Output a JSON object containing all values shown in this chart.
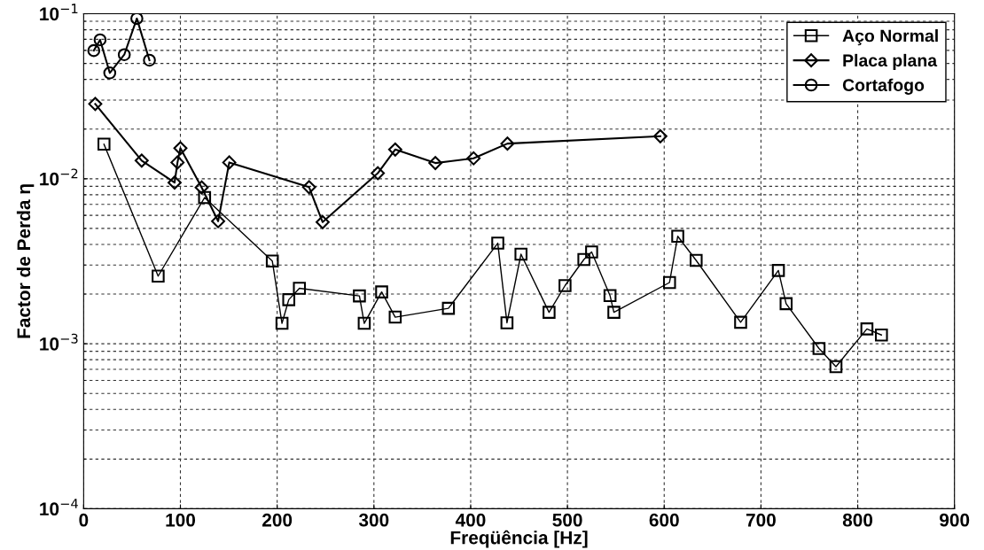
{
  "chart_data": {
    "type": "line",
    "xlabel": "Freqüência [Hz]",
    "ylabel": "Factor de Perda η",
    "log": "y",
    "grid": true,
    "legend": "top right",
    "line_style": "solid",
    "xlim": [
      0,
      900
    ],
    "xticks": [
      0,
      100,
      200,
      300,
      400,
      500,
      600,
      700,
      800,
      900
    ],
    "ylim": [
      0.0001,
      0.1
    ],
    "yticks": [
      {
        "value": 0.0001,
        "label": "10$^{−4}$"
      },
      {
        "value": 0.001,
        "label": "10$^{−3}$"
      },
      {
        "value": 0.01,
        "label": "10$^{−2}$"
      },
      {
        "value": 0.1,
        "label": "10$^{−1}$"
      }
    ],
    "series": [
      {
        "name": "Aço Normal",
        "color": "#000000",
        "marker": "square",
        "x": [
          21,
          77,
          125,
          195,
          205,
          212,
          223,
          285,
          290,
          308,
          322,
          377,
          428,
          437.5,
          452,
          481,
          497.5,
          517,
          525,
          544,
          548,
          605.5,
          614,
          633,
          679,
          718,
          726,
          760,
          777.5,
          809.5,
          824.5
        ],
        "values": [
          0.0162,
          0.00257,
          0.00769,
          0.00317,
          0.00133,
          0.00185,
          0.00217,
          0.00195,
          0.00133,
          0.00206,
          0.00145,
          0.00164,
          0.00407,
          0.00134,
          0.00349,
          0.00155,
          0.00225,
          0.00324,
          0.0036,
          0.00196,
          0.00155,
          0.00235,
          0.00448,
          0.0032,
          0.00135,
          0.00278,
          0.00175,
          0.000936,
          0.000726,
          0.00123,
          0.00113
        ]
      },
      {
        "name": "Placa plana",
        "color": "#000000",
        "marker": "diamond",
        "x": [
          12,
          60,
          94,
          97,
          100,
          122,
          139,
          150.5,
          233,
          247,
          304,
          322,
          363.5,
          403,
          438,
          596
        ],
        "values": [
          0.0284,
          0.01288,
          0.00948,
          0.01256,
          0.01532,
          0.00885,
          0.00553,
          0.01256,
          0.00889,
          0.00546,
          0.01081,
          0.01503,
          0.01245,
          0.0133,
          0.01633,
          0.0181
        ]
      },
      {
        "name": "Cortafogo",
        "color": "#000000",
        "marker": "circle",
        "x": [
          10.5,
          17,
          27,
          42,
          55,
          68
        ],
        "values": [
          0.0598,
          0.0695,
          0.0438,
          0.0565,
          0.0936,
          0.0523
        ]
      }
    ]
  }
}
